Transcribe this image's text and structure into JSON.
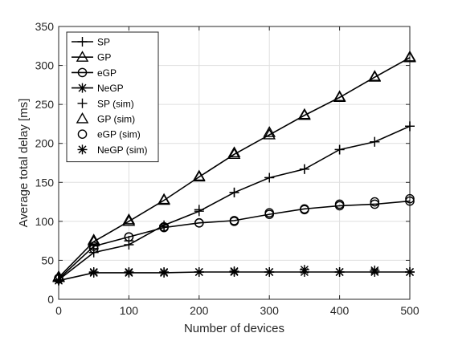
{
  "chart_data": {
    "type": "line",
    "title": "",
    "xlabel": "Number of devices",
    "ylabel": "Average total delay [ms]",
    "xlim": [
      0,
      500
    ],
    "ylim": [
      0,
      350
    ],
    "xticks": [
      0,
      100,
      200,
      300,
      400,
      500
    ],
    "yticks": [
      0,
      50,
      100,
      150,
      200,
      250,
      300,
      350
    ],
    "grid": true,
    "legend_position": "top-left",
    "series": [
      {
        "name": "SP",
        "marker": "plus",
        "style": "line",
        "x": [
          0,
          50,
          100,
          150,
          200,
          250,
          300,
          350,
          400,
          450,
          500
        ],
        "y": [
          25,
          60,
          70,
          95,
          113,
          137,
          156,
          167,
          192,
          202,
          222
        ]
      },
      {
        "name": "GP",
        "marker": "triangle",
        "style": "line",
        "x": [
          0,
          50,
          100,
          150,
          200,
          250,
          300,
          350,
          400,
          450,
          500
        ],
        "y": [
          28,
          74,
          100,
          127,
          157,
          186,
          211,
          236,
          259,
          285,
          310
        ]
      },
      {
        "name": "eGP",
        "marker": "circle",
        "style": "line",
        "x": [
          0,
          50,
          100,
          150,
          200,
          250,
          300,
          350,
          400,
          450,
          500
        ],
        "y": [
          26,
          68,
          80,
          92,
          98,
          101,
          109,
          116,
          120,
          122,
          126
        ]
      },
      {
        "name": "NeGP",
        "marker": "asterisk",
        "style": "line",
        "x": [
          0,
          50,
          100,
          150,
          200,
          250,
          300,
          350,
          400,
          450,
          500
        ],
        "y": [
          24,
          34,
          34,
          34,
          35,
          35,
          35,
          35,
          35,
          35,
          35
        ]
      },
      {
        "name": "SP (sim)",
        "marker": "plus",
        "style": "markers",
        "x": [
          0,
          50,
          100,
          150,
          200,
          250,
          300,
          350,
          400,
          450,
          500
        ],
        "y": [
          24,
          65,
          75,
          93,
          115,
          137,
          156,
          167,
          192,
          202,
          222
        ]
      },
      {
        "name": "GP (sim)",
        "marker": "triangle",
        "style": "markers",
        "x": [
          0,
          50,
          100,
          150,
          200,
          250,
          300,
          350,
          400,
          450,
          500
        ],
        "y": [
          29,
          76,
          102,
          128,
          158,
          188,
          214,
          237,
          260,
          286,
          311
        ]
      },
      {
        "name": "eGP (sim)",
        "marker": "circle",
        "style": "markers",
        "x": [
          0,
          50,
          100,
          150,
          200,
          250,
          300,
          350,
          400,
          450,
          500
        ],
        "y": [
          27,
          65,
          80,
          93,
          98,
          100,
          111,
          115,
          122,
          125,
          129
        ]
      },
      {
        "name": "NeGP (sim)",
        "marker": "asterisk",
        "style": "markers",
        "x": [
          0,
          50,
          100,
          150,
          200,
          250,
          300,
          350,
          400,
          450,
          500
        ],
        "y": [
          24,
          35,
          35,
          35,
          35,
          36,
          35,
          38,
          35,
          37,
          35
        ]
      }
    ]
  }
}
